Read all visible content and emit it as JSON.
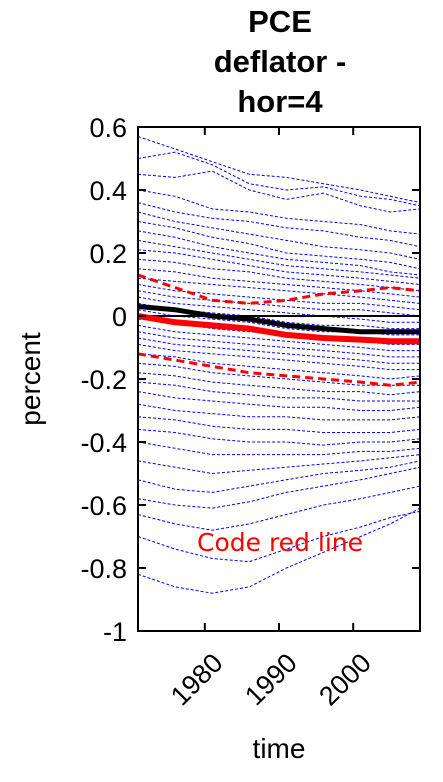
{
  "chart_data": {
    "type": "line",
    "title": [
      "PCE",
      "deflator -",
      "hor=4"
    ],
    "xlabel": "time",
    "ylabel": "percent",
    "xlim": [
      1971,
      2009
    ],
    "ylim": [
      -1,
      0.6
    ],
    "xticks": [
      1980,
      1990,
      2000
    ],
    "xtick_labels": [
      "1980",
      "1990",
      "2000"
    ],
    "yticks": [
      0.6,
      0.4,
      0.2,
      0,
      -0.2,
      -0.4,
      -0.6,
      -0.8,
      -1
    ],
    "ytick_labels": [
      "0.6",
      "0.4",
      "0.2",
      "0",
      "-0.2",
      "-0.4",
      "-0.6",
      "-0.8",
      "-1"
    ],
    "annotation": {
      "text": "Code red line",
      "color": "#ff0000"
    },
    "colors": {
      "draws": "#0000ff",
      "median": "#ff0000",
      "bands": "#ff0000",
      "zero": "#000000"
    },
    "x": [
      1971,
      1976,
      1981,
      1986,
      1991,
      1996,
      2001,
      2005,
      2009
    ],
    "series": [
      {
        "role": "zero",
        "values": [
          0,
          0,
          0,
          0,
          0,
          0,
          0,
          0,
          0
        ]
      },
      {
        "role": "median",
        "values": [
          0.0,
          -0.02,
          -0.03,
          -0.04,
          -0.06,
          -0.07,
          -0.075,
          -0.08,
          -0.08
        ]
      },
      {
        "role": "band-upper",
        "values": [
          0.13,
          0.09,
          0.05,
          0.04,
          0.05,
          0.07,
          0.08,
          0.09,
          0.08
        ]
      },
      {
        "role": "band-lower",
        "values": [
          -0.12,
          -0.14,
          -0.16,
          -0.18,
          -0.19,
          -0.2,
          -0.21,
          -0.22,
          -0.21
        ]
      },
      {
        "role": "bold",
        "values": [
          0.03,
          0.02,
          0.0,
          -0.01,
          -0.03,
          -0.04,
          -0.05,
          -0.05,
          -0.05
        ]
      },
      {
        "role": "draw",
        "values": [
          0.57,
          0.53,
          0.49,
          0.45,
          0.44,
          0.42,
          0.4,
          0.38,
          0.36
        ]
      },
      {
        "role": "draw",
        "values": [
          0.5,
          0.52,
          0.48,
          0.42,
          0.4,
          0.41,
          0.38,
          0.37,
          0.35
        ]
      },
      {
        "role": "draw",
        "values": [
          0.45,
          0.44,
          0.46,
          0.4,
          0.37,
          0.39,
          0.35,
          0.33,
          0.34
        ]
      },
      {
        "role": "draw",
        "values": [
          0.4,
          0.38,
          0.34,
          0.33,
          0.31,
          0.3,
          0.29,
          0.27,
          0.26
        ]
      },
      {
        "role": "draw",
        "values": [
          0.36,
          0.33,
          0.31,
          0.3,
          0.28,
          0.27,
          0.25,
          0.24,
          0.22
        ]
      },
      {
        "role": "draw",
        "values": [
          0.33,
          0.3,
          0.28,
          0.26,
          0.24,
          0.22,
          0.21,
          0.2,
          0.18
        ]
      },
      {
        "role": "draw",
        "values": [
          0.3,
          0.28,
          0.25,
          0.23,
          0.2,
          0.19,
          0.18,
          0.17,
          0.15
        ]
      },
      {
        "role": "draw",
        "values": [
          0.27,
          0.25,
          0.22,
          0.2,
          0.18,
          0.17,
          0.16,
          0.14,
          0.13
        ]
      },
      {
        "role": "draw",
        "values": [
          0.24,
          0.22,
          0.2,
          0.18,
          0.16,
          0.15,
          0.14,
          0.13,
          0.12
        ]
      },
      {
        "role": "draw",
        "values": [
          0.21,
          0.2,
          0.18,
          0.16,
          0.14,
          0.13,
          0.12,
          0.11,
          0.1
        ]
      },
      {
        "role": "draw",
        "values": [
          0.18,
          0.17,
          0.15,
          0.14,
          0.12,
          0.11,
          0.1,
          0.09,
          0.08
        ]
      },
      {
        "role": "draw",
        "values": [
          0.15,
          0.14,
          0.12,
          0.11,
          0.1,
          0.09,
          0.08,
          0.07,
          0.06
        ]
      },
      {
        "role": "draw",
        "values": [
          0.12,
          0.11,
          0.1,
          0.09,
          0.08,
          0.07,
          0.06,
          0.05,
          0.04
        ]
      },
      {
        "role": "draw",
        "values": [
          0.1,
          0.08,
          0.07,
          0.06,
          0.05,
          0.04,
          0.04,
          0.03,
          0.02
        ]
      },
      {
        "role": "draw",
        "values": [
          0.08,
          0.06,
          0.05,
          0.04,
          0.03,
          0.02,
          0.02,
          0.01,
          0.0
        ]
      },
      {
        "role": "draw",
        "values": [
          0.06,
          0.04,
          0.03,
          0.02,
          0.01,
          0.0,
          -0.01,
          -0.02,
          -0.02
        ]
      },
      {
        "role": "draw",
        "values": [
          0.04,
          0.02,
          0.01,
          0.0,
          -0.02,
          -0.03,
          -0.03,
          -0.04,
          -0.04
        ]
      },
      {
        "role": "draw",
        "values": [
          0.02,
          0.0,
          -0.01,
          -0.02,
          -0.04,
          -0.05,
          -0.05,
          -0.06,
          -0.06
        ]
      },
      {
        "role": "draw",
        "values": [
          -0.01,
          -0.02,
          -0.04,
          -0.05,
          -0.06,
          -0.07,
          -0.08,
          -0.09,
          -0.09
        ]
      },
      {
        "role": "draw",
        "values": [
          -0.03,
          -0.05,
          -0.06,
          -0.07,
          -0.08,
          -0.09,
          -0.1,
          -0.11,
          -0.11
        ]
      },
      {
        "role": "draw",
        "values": [
          -0.05,
          -0.07,
          -0.08,
          -0.09,
          -0.1,
          -0.11,
          -0.12,
          -0.13,
          -0.13
        ]
      },
      {
        "role": "draw",
        "values": [
          -0.07,
          -0.09,
          -0.1,
          -0.11,
          -0.12,
          -0.13,
          -0.14,
          -0.15,
          -0.15
        ]
      },
      {
        "role": "draw",
        "values": [
          -0.09,
          -0.11,
          -0.12,
          -0.13,
          -0.14,
          -0.15,
          -0.16,
          -0.17,
          -0.17
        ]
      },
      {
        "role": "draw",
        "values": [
          -0.12,
          -0.13,
          -0.15,
          -0.16,
          -0.17,
          -0.18,
          -0.19,
          -0.2,
          -0.19
        ]
      },
      {
        "role": "draw",
        "values": [
          -0.15,
          -0.16,
          -0.18,
          -0.19,
          -0.2,
          -0.21,
          -0.22,
          -0.22,
          -0.22
        ]
      },
      {
        "role": "draw",
        "values": [
          -0.18,
          -0.19,
          -0.21,
          -0.22,
          -0.23,
          -0.24,
          -0.24,
          -0.25,
          -0.24
        ]
      },
      {
        "role": "draw",
        "values": [
          -0.21,
          -0.22,
          -0.24,
          -0.25,
          -0.26,
          -0.26,
          -0.27,
          -0.27,
          -0.27
        ]
      },
      {
        "role": "draw",
        "values": [
          -0.24,
          -0.26,
          -0.27,
          -0.28,
          -0.29,
          -0.29,
          -0.3,
          -0.3,
          -0.29
        ]
      },
      {
        "role": "draw",
        "values": [
          -0.28,
          -0.3,
          -0.31,
          -0.32,
          -0.32,
          -0.33,
          -0.33,
          -0.33,
          -0.32
        ]
      },
      {
        "role": "draw",
        "values": [
          -0.32,
          -0.33,
          -0.35,
          -0.36,
          -0.36,
          -0.37,
          -0.37,
          -0.37,
          -0.36
        ]
      },
      {
        "role": "draw",
        "values": [
          -0.36,
          -0.37,
          -0.39,
          -0.4,
          -0.4,
          -0.41,
          -0.4,
          -0.4,
          -0.39
        ]
      },
      {
        "role": "draw",
        "values": [
          -0.4,
          -0.42,
          -0.44,
          -0.44,
          -0.44,
          -0.44,
          -0.43,
          -0.43,
          -0.42
        ]
      },
      {
        "role": "draw",
        "values": [
          -0.46,
          -0.48,
          -0.5,
          -0.49,
          -0.48,
          -0.47,
          -0.46,
          -0.45,
          -0.44
        ]
      },
      {
        "role": "draw",
        "values": [
          -0.52,
          -0.55,
          -0.56,
          -0.54,
          -0.52,
          -0.5,
          -0.49,
          -0.48,
          -0.46
        ]
      },
      {
        "role": "draw",
        "values": [
          -0.58,
          -0.6,
          -0.61,
          -0.59,
          -0.56,
          -0.54,
          -0.52,
          -0.5,
          -0.48
        ]
      },
      {
        "role": "draw",
        "values": [
          -0.63,
          -0.66,
          -0.68,
          -0.66,
          -0.63,
          -0.6,
          -0.58,
          -0.56,
          -0.54
        ]
      },
      {
        "role": "draw",
        "values": [
          -0.7,
          -0.74,
          -0.77,
          -0.78,
          -0.74,
          -0.7,
          -0.67,
          -0.64,
          -0.62
        ]
      },
      {
        "role": "draw",
        "values": [
          -0.82,
          -0.86,
          -0.88,
          -0.86,
          -0.8,
          -0.75,
          -0.7,
          -0.66,
          -0.61
        ]
      }
    ]
  }
}
